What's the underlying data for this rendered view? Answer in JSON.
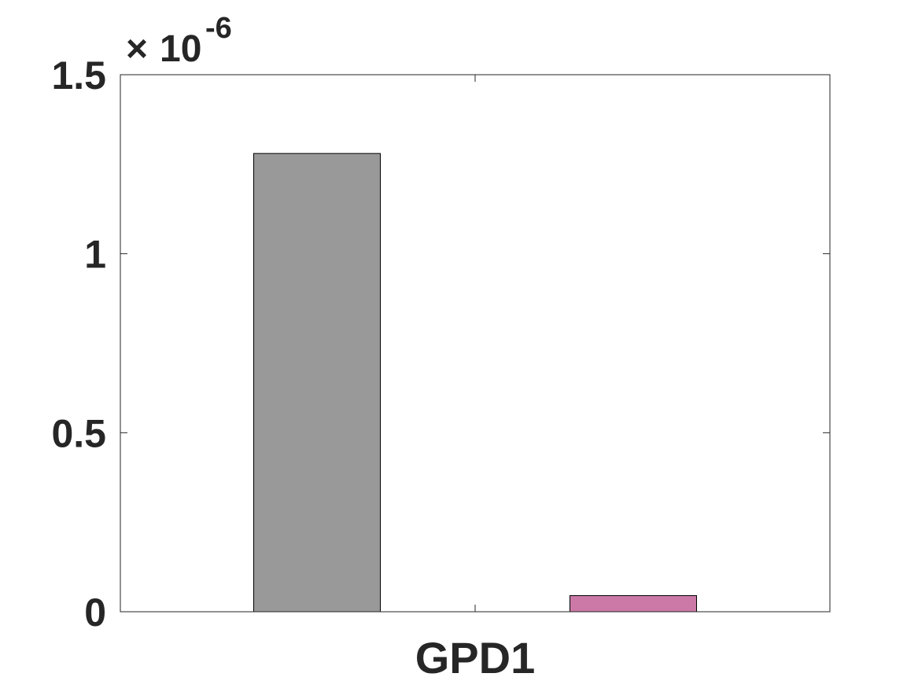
{
  "chart_data": {
    "type": "bar",
    "categories": [
      "GPD1"
    ],
    "series": [
      {
        "values": [
          1.28e-06
        ],
        "color": "#999999"
      },
      {
        "values": [
          4.5e-08
        ],
        "color": "#cc79a7"
      }
    ],
    "title": "",
    "xlabel": "",
    "ylabel": "",
    "ylim": [
      0,
      1.5e-06
    ],
    "yticks": [
      0,
      0.5,
      1,
      1.5
    ],
    "ytick_labels": [
      "0",
      "0.5",
      "1",
      "1.5"
    ],
    "y_exponent_label": {
      "times": "×",
      "base": "10",
      "exponent": "-6"
    },
    "grid": false,
    "legend": "none"
  }
}
